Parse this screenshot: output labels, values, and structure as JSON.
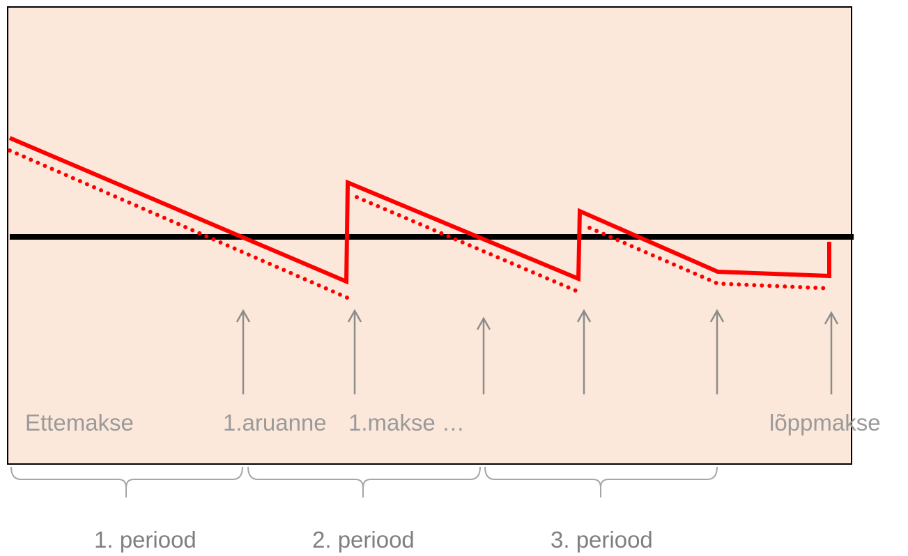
{
  "labels": {
    "ettemakse": "Ettemakse",
    "aruanne": "1.aruanne",
    "makse": "1.makse …",
    "loppmakse": "lõppmakse"
  },
  "periods": [
    "1. periood",
    "2. periood",
    "3. periood"
  ],
  "colors": {
    "panel_fill": "#fce8da",
    "panel_border": "#000000",
    "reference_line": "#000000",
    "balance_line": "#ff0000",
    "arrow": "#8c8c8c",
    "brace": "#a6a6a6",
    "label_text": "#9a9a9a",
    "period_text": "#7f7f7f"
  }
}
